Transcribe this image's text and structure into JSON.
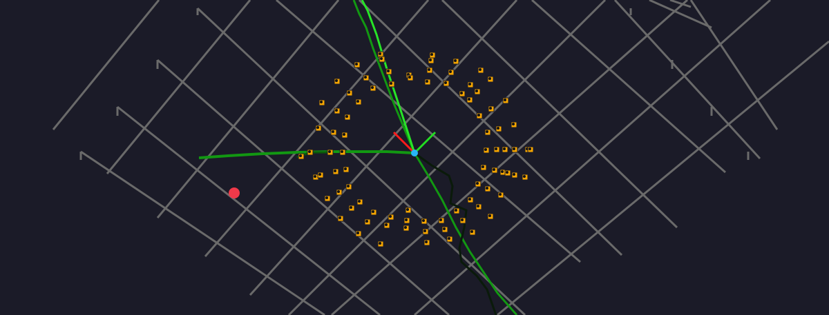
{
  "viewer": {
    "background_color": "#1b1b28",
    "grid_color": "#6a6a6a",
    "markers": {
      "color": "#f5a500",
      "count_rings": 3,
      "shape": "orange-square-with-black-dot"
    },
    "trajectories": [
      {
        "name": "lime",
        "color": "#27e427"
      },
      {
        "name": "green",
        "color": "#129812"
      },
      {
        "name": "dark-green",
        "color": "#0a5a0a"
      },
      {
        "name": "black",
        "color": "#0a1a0a"
      }
    ],
    "axes": {
      "x_color": "#ff1a1a",
      "y_color": "#22dd22",
      "origin_color": "#29b6f6"
    },
    "target_point_color": "#f0394a"
  }
}
